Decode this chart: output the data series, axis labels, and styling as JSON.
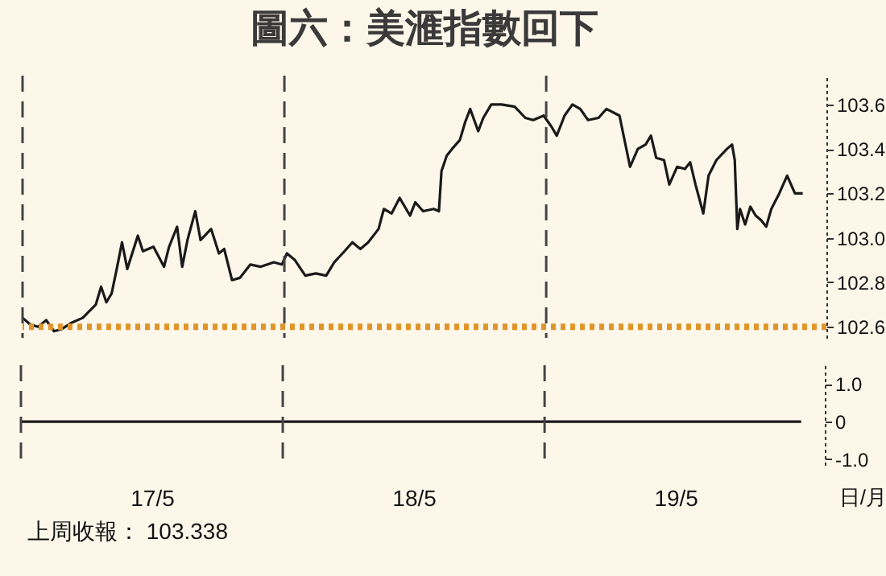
{
  "chart_data": [
    {
      "type": "line",
      "title": "圖六：美滙指數回下",
      "xlim": [
        "--05-17T00:00",
        "--05-20T01:41"
      ],
      "ylim": [
        102.55,
        103.73
      ],
      "yticks": [
        {
          "value": 102.6,
          "label": "102.6"
        },
        {
          "value": 102.8,
          "label": "102.8"
        },
        {
          "value": 103.0,
          "label": "103.0"
        },
        {
          "value": 103.2,
          "label": "103.2"
        },
        {
          "value": 103.4,
          "label": "103.4"
        },
        {
          "value": 103.6,
          "label": "103.6"
        }
      ],
      "tick_labels": "y",
      "grid": false,
      "marker": "none",
      "line_style": "solid",
      "x": [
        "--05-17T00:00",
        "--05-17T00:43",
        "--05-17T01:26",
        "--05-17T02:10",
        "--05-17T02:53",
        "--05-17T03:36",
        "--05-17T04:34",
        "--05-17T05:31",
        "--05-17T06:43",
        "--05-17T07:12",
        "--05-17T07:41",
        "--05-17T08:10",
        "--05-17T08:38",
        "--05-17T09:07",
        "--05-17T09:36",
        "--05-17T10:34",
        "--05-17T11:02",
        "--05-17T12:00",
        "--05-17T12:58",
        "--05-17T13:26",
        "--05-17T14:10",
        "--05-17T14:38",
        "--05-17T15:07",
        "--05-17T15:50",
        "--05-17T16:19",
        "--05-17T17:17",
        "--05-17T18:00",
        "--05-17T18:29",
        "--05-17T19:12",
        "--05-17T19:55",
        "--05-17T20:53",
        "--05-17T21:50",
        "--05-17T23:02",
        "--05-17T23:46",
        "--05-18T00:14",
        "--05-18T00:58",
        "--05-18T01:55",
        "--05-18T02:53",
        "--05-18T03:50",
        "--05-18T04:34",
        "--05-18T05:31",
        "--05-18T06:14",
        "--05-18T06:58",
        "--05-18T07:41",
        "--05-18T08:38",
        "--05-18T09:07",
        "--05-18T09:50",
        "--05-18T10:34",
        "--05-18T11:31",
        "--05-18T12:00",
        "--05-18T12:43",
        "--05-18T13:41",
        "--05-18T14:10",
        "--05-18T14:24",
        "--05-18T14:53",
        "--05-18T15:22",
        "--05-18T16:05",
        "--05-18T16:34",
        "--05-18T17:02",
        "--05-18T17:46",
        "--05-18T18:14",
        "--05-18T18:58",
        "--05-18T19:55",
        "--05-18T21:07",
        "--05-18T22:05",
        "--05-18T22:48",
        "--05-18T23:46",
        "--05-19T00:29",
        "--05-19T00:58",
        "--05-19T01:41",
        "--05-19T02:24",
        "--05-19T03:07",
        "--05-19T03:50",
        "--05-19T04:48",
        "--05-19T05:31",
        "--05-19T06:43",
        "--05-19T07:41",
        "--05-19T08:24",
        "--05-19T09:07",
        "--05-19T09:36",
        "--05-19T10:05",
        "--05-19T10:48",
        "--05-19T11:17",
        "--05-19T12:00",
        "--05-19T12:43",
        "--05-19T13:12",
        "--05-19T13:41",
        "--05-19T14:24",
        "--05-19T14:53",
        "--05-19T15:36",
        "--05-19T16:34",
        "--05-19T17:02",
        "--05-19T17:17",
        "--05-19T17:31",
        "--05-19T17:46",
        "--05-19T18:14",
        "--05-19T18:43",
        "--05-19T19:12",
        "--05-19T19:41",
        "--05-19T20:10",
        "--05-19T20:38",
        "--05-19T21:22",
        "--05-19T22:05",
        "--05-19T22:48",
        "--05-19T23:31"
      ],
      "series": [
        {
          "color": "#1a1a1a",
          "values": [
            102.64,
            102.61,
            102.6,
            102.63,
            102.58,
            102.59,
            102.62,
            102.64,
            102.7,
            102.78,
            102.71,
            102.75,
            102.86,
            102.98,
            102.86,
            103.01,
            102.94,
            102.96,
            102.87,
            102.96,
            103.05,
            102.87,
            102.99,
            103.12,
            102.99,
            103.04,
            102.93,
            102.95,
            102.81,
            102.82,
            102.88,
            102.87,
            102.89,
            102.88,
            102.93,
            102.9,
            102.83,
            102.84,
            102.83,
            102.89,
            102.94,
            102.98,
            102.95,
            102.98,
            103.04,
            103.13,
            103.11,
            103.18,
            103.1,
            103.16,
            103.12,
            103.13,
            103.12,
            103.3,
            103.37,
            103.4,
            103.44,
            103.52,
            103.58,
            103.48,
            103.54,
            103.6,
            103.6,
            103.59,
            103.54,
            103.53,
            103.55,
            103.5,
            103.46,
            103.55,
            103.6,
            103.58,
            103.53,
            103.54,
            103.58,
            103.55,
            103.32,
            103.4,
            103.42,
            103.46,
            103.36,
            103.35,
            103.24,
            103.32,
            103.31,
            103.34,
            103.24,
            103.11,
            103.28,
            103.35,
            103.4,
            103.42,
            103.35,
            103.04,
            103.13,
            103.06,
            103.14,
            103.1,
            103.08,
            103.05,
            103.13,
            103.2,
            103.28,
            103.2,
            103.2
          ]
        }
      ],
      "ref_lines": [
        {
          "axis": "x",
          "value": "--05-17",
          "color": "#444444",
          "line_style": "dashed"
        },
        {
          "axis": "x",
          "value": "--05-18",
          "color": "#444444",
          "line_style": "dashed"
        },
        {
          "axis": "x",
          "value": "--05-19",
          "color": "#444444",
          "line_style": "dashed"
        },
        {
          "axis": "y",
          "value": 102.6,
          "color": "#e0952a",
          "line_style": "dotted"
        }
      ]
    },
    {
      "type": "line",
      "xlabel": "日/月",
      "xlim": [
        "--05-17T00:00",
        "--05-20T01:41"
      ],
      "ylim": [
        -1.15,
        1.5
      ],
      "xticks": [
        {
          "value": "--05-17T12:00",
          "label": "17/5"
        },
        {
          "value": "--05-18T12:00",
          "label": "18/5"
        },
        {
          "value": "--05-19T12:00",
          "label": "19/5"
        }
      ],
      "yticks": [
        {
          "value": 1,
          "label": "1.0"
        },
        {
          "value": 0,
          "label": "0"
        },
        {
          "value": -1,
          "label": "-1.0"
        }
      ],
      "grid": false,
      "marker": "none",
      "line_style": "solid",
      "x": [
        "--05-17T00:00",
        "--05-19T23:31"
      ],
      "series": [
        {
          "color": "#1a1a1a",
          "values": [
            0,
            0
          ]
        }
      ],
      "ref_lines": [
        {
          "axis": "x",
          "value": "--05-17",
          "color": "#444444",
          "line_style": "dashed"
        },
        {
          "axis": "x",
          "value": "--05-18",
          "color": "#444444",
          "line_style": "dashed"
        },
        {
          "axis": "x",
          "value": "--05-19",
          "color": "#444444",
          "line_style": "dashed"
        }
      ],
      "annotations": [
        "上周收報： 103.338"
      ]
    }
  ]
}
